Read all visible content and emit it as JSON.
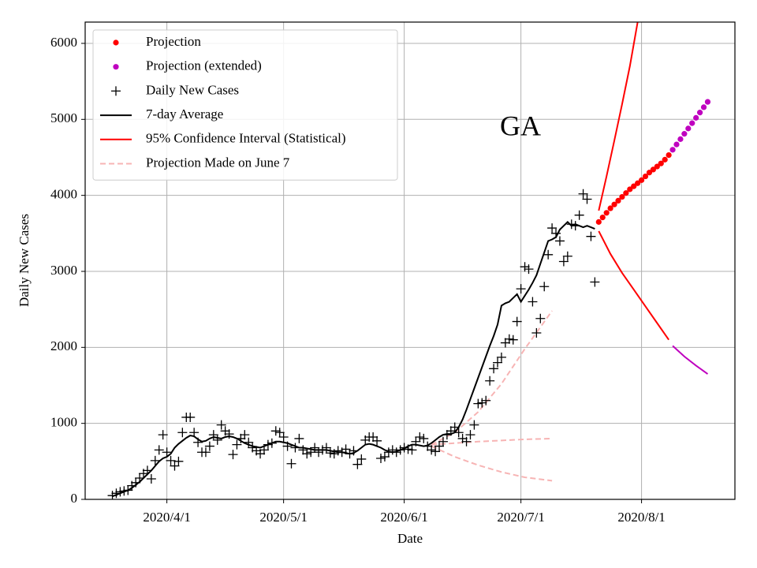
{
  "chart_data": {
    "type": "line",
    "annotation": "GA",
    "xlabel": "Date",
    "ylabel": "Daily New Cases",
    "xlim": [
      "2020/3/11",
      "2020/8/25"
    ],
    "xticks": [
      "2020/4/1",
      "2020/5/1",
      "2020/6/1",
      "2020/7/1",
      "2020/8/1"
    ],
    "ylim": [
      0,
      6280
    ],
    "yticks": [
      0,
      1000,
      2000,
      3000,
      4000,
      5000,
      6000
    ],
    "grid": true,
    "legend": "upper left",
    "x": [
      "2020/3/18",
      "2020/3/19",
      "2020/3/20",
      "2020/3/21",
      "2020/3/22",
      "2020/3/23",
      "2020/3/24",
      "2020/3/25",
      "2020/3/26",
      "2020/3/27",
      "2020/3/28",
      "2020/3/29",
      "2020/3/30",
      "2020/3/31",
      "2020/4/1",
      "2020/4/2",
      "2020/4/3",
      "2020/4/4",
      "2020/4/5",
      "2020/4/6",
      "2020/4/7",
      "2020/4/8",
      "2020/4/9",
      "2020/4/10",
      "2020/4/11",
      "2020/4/12",
      "2020/4/13",
      "2020/4/14",
      "2020/4/15",
      "2020/4/16",
      "2020/4/17",
      "2020/4/18",
      "2020/4/19",
      "2020/4/20",
      "2020/4/21",
      "2020/4/22",
      "2020/4/23",
      "2020/4/24",
      "2020/4/25",
      "2020/4/26",
      "2020/4/27",
      "2020/4/28",
      "2020/4/29",
      "2020/4/30",
      "2020/5/1",
      "2020/5/2",
      "2020/5/3",
      "2020/5/4",
      "2020/5/5",
      "2020/5/6",
      "2020/5/7",
      "2020/5/8",
      "2020/5/9",
      "2020/5/10",
      "2020/5/11",
      "2020/5/12",
      "2020/5/13",
      "2020/5/14",
      "2020/5/15",
      "2020/5/16",
      "2020/5/17",
      "2020/5/18",
      "2020/5/19",
      "2020/5/20",
      "2020/5/21",
      "2020/5/22",
      "2020/5/23",
      "2020/5/24",
      "2020/5/25",
      "2020/5/26",
      "2020/5/27",
      "2020/5/28",
      "2020/5/29",
      "2020/5/30",
      "2020/5/31",
      "2020/6/1",
      "2020/6/2",
      "2020/6/3",
      "2020/6/4",
      "2020/6/5",
      "2020/6/6",
      "2020/6/7",
      "2020/6/8",
      "2020/6/9",
      "2020/6/10",
      "2020/6/11",
      "2020/6/12",
      "2020/6/13",
      "2020/6/14",
      "2020/6/15",
      "2020/6/16",
      "2020/6/17",
      "2020/6/18",
      "2020/6/19",
      "2020/6/20",
      "2020/6/21",
      "2020/6/22",
      "2020/6/23",
      "2020/6/24",
      "2020/6/25",
      "2020/6/26",
      "2020/6/27",
      "2020/6/28",
      "2020/6/29",
      "2020/6/30",
      "2020/7/1",
      "2020/7/2",
      "2020/7/3",
      "2020/7/4",
      "2020/7/5",
      "2020/7/6",
      "2020/7/7",
      "2020/7/8",
      "2020/7/9",
      "2020/7/10",
      "2020/7/11",
      "2020/7/12",
      "2020/7/13",
      "2020/7/14",
      "2020/7/15",
      "2020/7/16",
      "2020/7/17",
      "2020/7/18",
      "2020/7/19",
      "2020/7/20"
    ],
    "series": [
      {
        "name": "Projection",
        "style": "dot",
        "color": "#ff0000",
        "x": [
          "2020/7/21",
          "2020/7/22",
          "2020/7/23",
          "2020/7/24",
          "2020/7/25",
          "2020/7/26",
          "2020/7/27",
          "2020/7/28",
          "2020/7/29",
          "2020/7/30",
          "2020/7/31",
          "2020/8/1",
          "2020/8/2",
          "2020/8/3",
          "2020/8/4",
          "2020/8/5",
          "2020/8/6",
          "2020/8/7",
          "2020/8/8"
        ],
        "values": [
          3650,
          3710,
          3770,
          3830,
          3880,
          3930,
          3980,
          4030,
          4080,
          4120,
          4160,
          4200,
          4250,
          4300,
          4340,
          4380,
          4420,
          4470,
          4530
        ]
      },
      {
        "name": "Projection (extended)",
        "style": "dot",
        "color": "#bf00bf",
        "x": [
          "2020/8/9",
          "2020/8/10",
          "2020/8/11",
          "2020/8/12",
          "2020/8/13",
          "2020/8/14",
          "2020/8/15",
          "2020/8/16",
          "2020/8/17",
          "2020/8/18"
        ],
        "values": [
          4600,
          4670,
          4740,
          4810,
          4880,
          4950,
          5020,
          5090,
          5160,
          5230
        ]
      },
      {
        "name": "Daily New Cases",
        "style": "plus",
        "color": "#000000",
        "values": [
          50,
          80,
          100,
          110,
          120,
          180,
          220,
          280,
          340,
          380,
          270,
          510,
          650,
          850,
          620,
          510,
          440,
          500,
          880,
          1080,
          1080,
          880,
          750,
          620,
          620,
          700,
          850,
          780,
          980,
          900,
          860,
          590,
          720,
          800,
          850,
          750,
          680,
          640,
          600,
          650,
          720,
          740,
          900,
          880,
          820,
          700,
          470,
          680,
          800,
          650,
          600,
          620,
          680,
          620,
          650,
          680,
          610,
          600,
          640,
          620,
          660,
          600,
          640,
          460,
          530,
          780,
          820,
          820,
          770,
          540,
          560,
          620,
          650,
          620,
          650,
          680,
          660,
          650,
          760,
          820,
          800,
          700,
          650,
          630,
          700,
          760,
          850,
          900,
          950,
          880,
          800,
          760,
          850,
          980,
          1260,
          1270,
          1300,
          1560,
          1720,
          1800,
          1870,
          2060,
          2110,
          2100,
          2340,
          2770,
          3060,
          3030,
          2600,
          2190,
          2380,
          2800,
          3220,
          3570,
          3500,
          3400,
          3130,
          3200,
          3620,
          3600,
          3740,
          4020,
          3950,
          3460,
          2860
        ]
      },
      {
        "name": "7-day Average",
        "style": "solid",
        "color": "#000000",
        "values": [
          40,
          60,
          80,
          100,
          120,
          150,
          190,
          230,
          280,
          330,
          380,
          440,
          500,
          540,
          560,
          600,
          680,
          730,
          770,
          810,
          840,
          830,
          790,
          760,
          770,
          800,
          820,
          810,
          800,
          820,
          830,
          820,
          800,
          770,
          740,
          720,
          700,
          690,
          680,
          700,
          720,
          740,
          760,
          760,
          750,
          740,
          720,
          700,
          680,
          680,
          670,
          660,
          650,
          650,
          650,
          650,
          640,
          630,
          620,
          620,
          610,
          600,
          610,
          640,
          680,
          720,
          730,
          720,
          700,
          680,
          650,
          630,
          620,
          630,
          650,
          670,
          700,
          720,
          720,
          710,
          700,
          710,
          740,
          780,
          820,
          850,
          860,
          860,
          880,
          950,
          1050,
          1180,
          1320,
          1460,
          1600,
          1740,
          1880,
          2020,
          2150,
          2300,
          2550,
          2580,
          2600,
          2650,
          2700,
          2600,
          2680,
          2760,
          2850,
          2950,
          3100,
          3250,
          3400,
          3420,
          3450,
          3550,
          3600,
          3650,
          3600,
          3620,
          3600,
          3580,
          3600,
          3580,
          3560
        ]
      },
      {
        "name": "95% Confidence Interval (Statistical)",
        "style": "solid",
        "color": "#ff0000",
        "x": [
          "2020/7/21",
          "2020/7/23",
          "2020/7/25",
          "2020/7/27",
          "2020/7/29",
          "2020/7/31"
        ],
        "values": [
          3800,
          4250,
          4720,
          5200,
          5700,
          6280
        ]
      },
      {
        "style": "solid",
        "color": "#ff0000",
        "x": [
          "2020/7/21",
          "2020/7/24",
          "2020/7/27",
          "2020/7/30",
          "2020/8/2",
          "2020/8/5",
          "2020/8/8"
        ],
        "values": [
          3530,
          3230,
          2980,
          2760,
          2540,
          2320,
          2100
        ]
      },
      {
        "style": "solid",
        "color": "#bf00bf",
        "x": [
          "2020/8/9",
          "2020/8/12",
          "2020/8/15",
          "2020/8/18"
        ],
        "values": [
          2020,
          1880,
          1760,
          1650
        ]
      },
      {
        "name": "Projection Made on June 7",
        "style": "dashed",
        "color": "#f7b4b4",
        "x": [
          "2020/6/8",
          "2020/6/14",
          "2020/6/20",
          "2020/6/26",
          "2020/7/2",
          "2020/7/9"
        ],
        "values": [
          720,
          880,
          1150,
          1520,
          1980,
          2480
        ]
      },
      {
        "style": "dashed",
        "color": "#f7b4b4",
        "x": [
          "2020/6/8",
          "2020/6/14",
          "2020/6/20",
          "2020/6/26",
          "2020/7/2",
          "2020/7/9"
        ],
        "values": [
          720,
          740,
          760,
          775,
          790,
          800
        ]
      },
      {
        "style": "dashed",
        "color": "#f7b4b4",
        "x": [
          "2020/6/8",
          "2020/6/14",
          "2020/6/20",
          "2020/6/26",
          "2020/7/2",
          "2020/7/9"
        ],
        "values": [
          700,
          560,
          450,
          360,
          290,
          245
        ]
      }
    ]
  }
}
